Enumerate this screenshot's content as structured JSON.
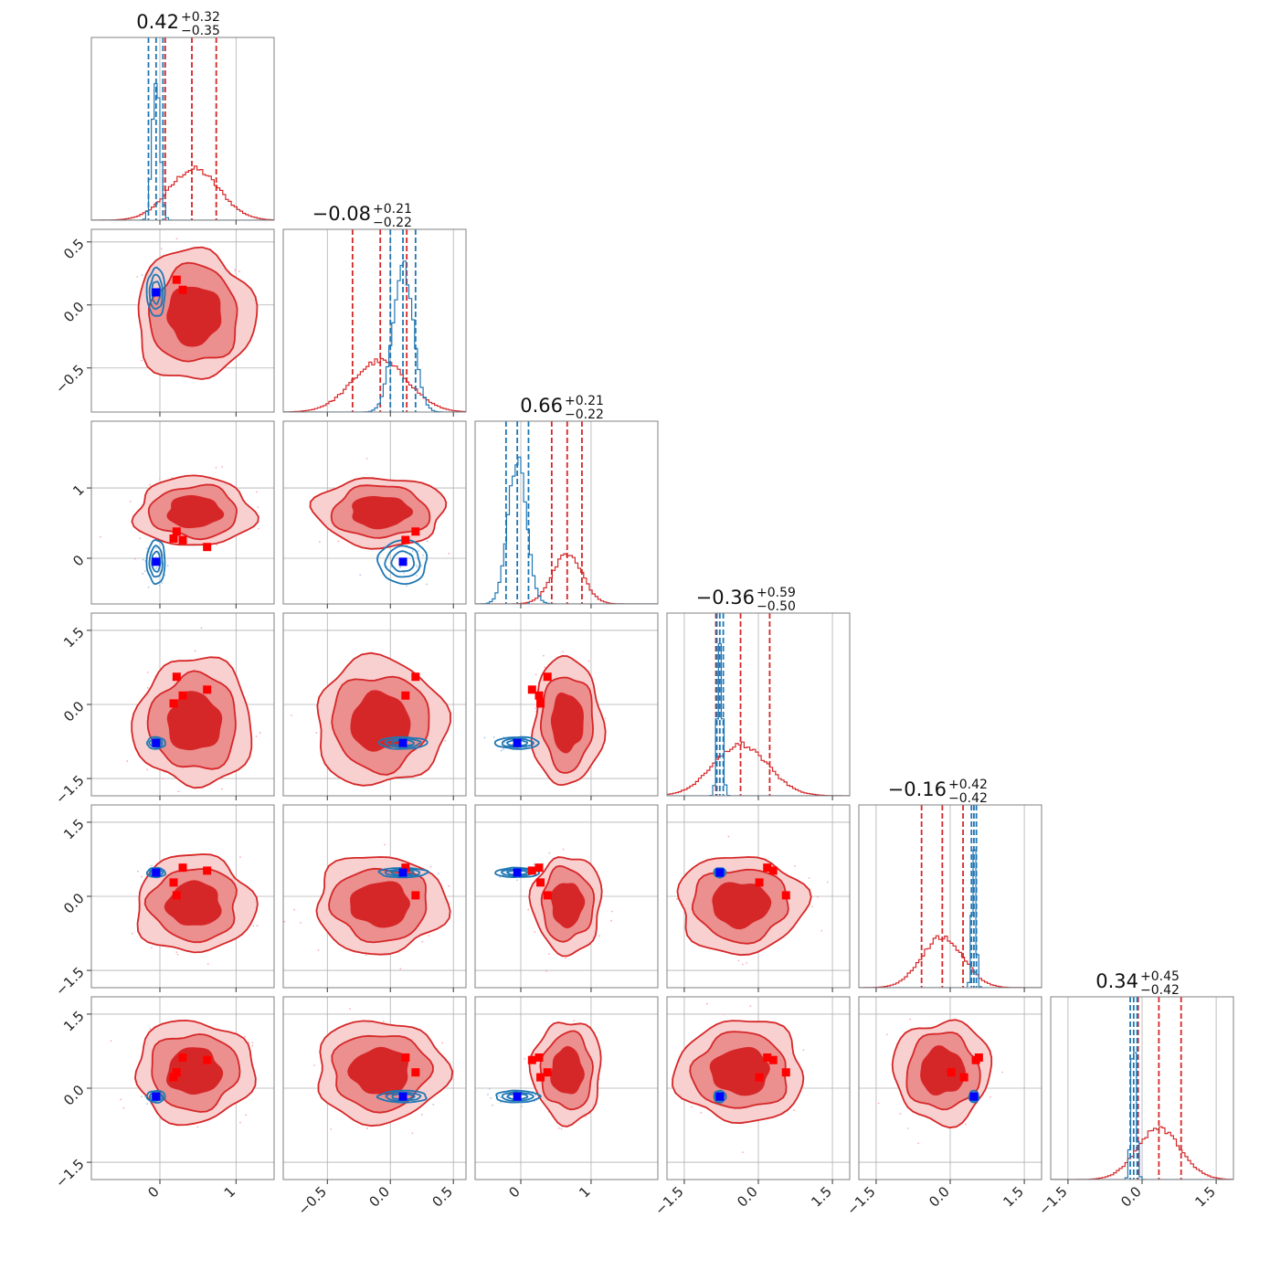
{
  "colors": {
    "red": "#d62728",
    "red_mid": "#ec8f8f",
    "red_light": "#f8d0d0",
    "blue": "#1f77b4",
    "blue_marker": "#0000ff",
    "red_marker": "#ff0000"
  },
  "chart_data": {
    "type": "corner",
    "n_params": 6,
    "grid": true,
    "panel_range": [
      [
        -0.9,
        1.5
      ],
      [
        -0.85,
        0.6
      ],
      [
        -0.65,
        1.95
      ],
      [
        -1.85,
        1.85
      ],
      [
        -1.85,
        1.85
      ],
      [
        -1.85,
        1.85
      ]
    ],
    "ticks": [
      [
        0,
        1
      ],
      [
        -0.5,
        0.0,
        0.5
      ],
      [
        0,
        1
      ],
      [
        -1.5,
        0.0,
        1.5
      ],
      [
        -1.5,
        0.0,
        1.5
      ],
      [
        -1.5,
        0.0,
        1.5
      ]
    ],
    "tick_labels": [
      [
        "0",
        "1"
      ],
      [
        "−0.5",
        "0.0",
        "0.5"
      ],
      [
        "0",
        "1"
      ],
      [
        "−1.5",
        "0.0",
        "1.5"
      ],
      [
        "−1.5",
        "0.0",
        "1.5"
      ],
      [
        "−1.5",
        "0.0",
        "1.5"
      ]
    ],
    "titles": [
      {
        "median": "0.42",
        "plus": "+0.32",
        "minus": "−0.35"
      },
      {
        "median": "−0.08",
        "plus": "+0.21",
        "minus": "−0.22"
      },
      {
        "median": "0.66",
        "plus": "+0.21",
        "minus": "−0.22"
      },
      {
        "median": "−0.36",
        "plus": "+0.59",
        "minus": "−0.50"
      },
      {
        "median": "−0.16",
        "plus": "+0.42",
        "minus": "−0.42"
      },
      {
        "median": "0.34",
        "plus": "+0.45",
        "minus": "−0.42"
      }
    ],
    "series": [
      {
        "color": "red",
        "mean": [
          0.45,
          -0.08,
          0.66,
          -0.36,
          -0.16,
          0.34
        ],
        "std": [
          0.33,
          0.22,
          0.21,
          0.55,
          0.42,
          0.44
        ],
        "quantiles": [
          [
            0.07,
            0.42,
            0.74
          ],
          [
            -0.3,
            -0.08,
            0.13
          ],
          [
            0.44,
            0.66,
            0.87
          ],
          [
            -0.86,
            -0.36,
            0.23
          ],
          [
            -0.58,
            -0.16,
            0.26
          ],
          [
            -0.08,
            0.34,
            0.79
          ]
        ]
      },
      {
        "color": "blue",
        "mean": [
          -0.05,
          0.1,
          -0.05,
          -0.78,
          0.48,
          -0.17
        ],
        "std": [
          0.05,
          0.08,
          0.13,
          0.05,
          0.04,
          0.05
        ],
        "quantiles": [
          [
            -0.15,
            -0.05,
            0.04
          ],
          [
            0.0,
            0.1,
            0.2
          ],
          [
            -0.21,
            -0.05,
            0.11
          ],
          [
            -0.84,
            -0.78,
            -0.71
          ],
          [
            0.43,
            0.48,
            0.53
          ],
          [
            -0.24,
            -0.17,
            -0.1
          ]
        ]
      }
    ],
    "truth_blue": [
      -0.05,
      0.1,
      -0.05,
      -0.78,
      0.48,
      -0.17
    ],
    "truth_red": [
      [
        0.62,
        0.66,
        0.16,
        0.3,
        0.52,
        0.57
      ],
      [
        0.3,
        0.12,
        0.26,
        0.18,
        0.58,
        0.62
      ],
      [
        0.18,
        0.67,
        0.28,
        0.02,
        0.28,
        0.22
      ],
      [
        0.22,
        0.2,
        0.38,
        0.56,
        0.02,
        0.32
      ]
    ]
  }
}
